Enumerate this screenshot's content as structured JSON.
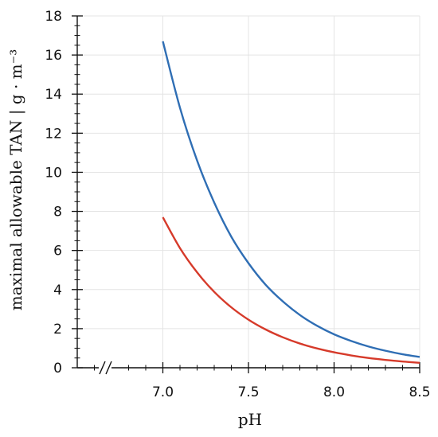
{
  "chart_data": {
    "type": "line",
    "title": "",
    "xlabel": "pH",
    "ylabel": "maximal allowable TAN | g · m⁻³",
    "xlim": [
      6.5,
      8.5
    ],
    "ylim": [
      0,
      18
    ],
    "x_ticks": [
      7.0,
      7.5,
      8.0,
      8.5
    ],
    "x_tick_labels": [
      "7.0",
      "7.5",
      "8.0",
      "8.5"
    ],
    "y_ticks": [
      0,
      2,
      4,
      6,
      8,
      10,
      12,
      14,
      16,
      18
    ],
    "y_tick_labels": [
      "0",
      "2",
      "4",
      "6",
      "8",
      "10",
      "12",
      "14",
      "16",
      "18"
    ],
    "axis_break": "x",
    "grid": true,
    "series": [
      {
        "color": "#2f6eb4",
        "x": [
          7.0,
          7.1,
          7.2,
          7.3,
          7.4,
          7.5,
          7.6,
          7.7,
          7.8,
          7.9,
          8.0,
          8.1,
          8.2,
          8.3,
          8.4,
          8.5
        ],
        "y": [
          16.7,
          13.3,
          10.6,
          8.45,
          6.7,
          5.35,
          4.25,
          3.4,
          2.7,
          2.15,
          1.71,
          1.37,
          1.09,
          0.87,
          0.69,
          0.55
        ]
      },
      {
        "color": "#d63a2a",
        "x": [
          7.0,
          7.1,
          7.2,
          7.3,
          7.4,
          7.5,
          7.6,
          7.7,
          7.8,
          7.9,
          8.0,
          8.1,
          8.2,
          8.3,
          8.4,
          8.5
        ],
        "y": [
          7.7,
          6.12,
          4.88,
          3.88,
          3.09,
          2.46,
          1.96,
          1.56,
          1.24,
          0.99,
          0.79,
          0.63,
          0.5,
          0.4,
          0.32,
          0.25
        ]
      }
    ]
  }
}
